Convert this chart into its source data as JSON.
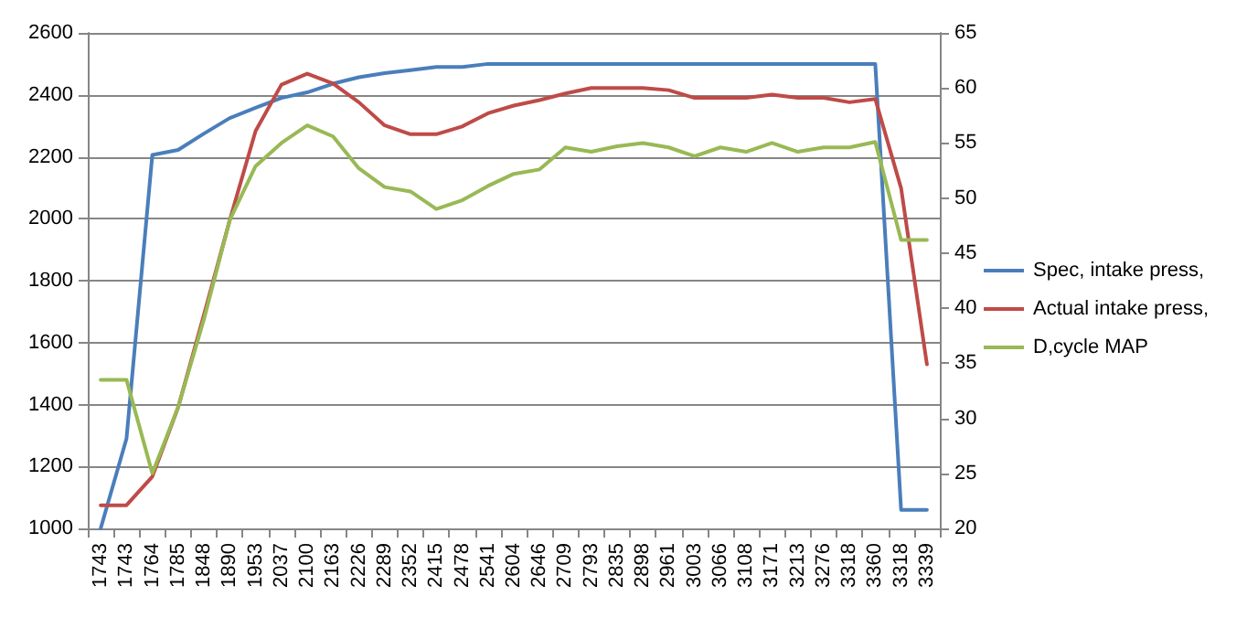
{
  "chart_data": {
    "type": "line",
    "categories": [
      "1743",
      "1743",
      "1764",
      "1785",
      "1848",
      "1890",
      "1953",
      "2037",
      "2100",
      "2163",
      "2226",
      "2289",
      "2352",
      "2415",
      "2478",
      "2541",
      "2604",
      "2646",
      "2709",
      "2793",
      "2835",
      "2898",
      "2961",
      "3003",
      "3066",
      "3108",
      "3171",
      "3213",
      "3276",
      "3318",
      "3360",
      "3318",
      "3339"
    ],
    "series": [
      {
        "name": "Spec, intake press,",
        "color": "#4a7ebb",
        "values": [
          1000,
          1290,
          2206,
          2222,
          2275,
          2325,
          2358,
          2390,
          2408,
          2436,
          2457,
          2470,
          2480,
          2490,
          2490,
          2500,
          2500,
          2500,
          2500,
          2500,
          2500,
          2500,
          2500,
          2500,
          2500,
          2500,
          2500,
          2500,
          2500,
          2500,
          2500,
          1060,
          1060
        ]
      },
      {
        "name": "Actual intake press,",
        "color": "#be4b48",
        "axis": "y2",
        "values": [
          22.1,
          22.1,
          24.7,
          31.0,
          39.4,
          48.0,
          56.1,
          60.3,
          61.3,
          60.4,
          58.7,
          56.6,
          55.8,
          55.8,
          56.5,
          57.7,
          58.4,
          58.9,
          59.5,
          60.0,
          60.0,
          60.0,
          59.8,
          59.1,
          59.1,
          59.1,
          59.4,
          59.1,
          59.1,
          58.7,
          59.0,
          50.9,
          34.9
        ]
      },
      {
        "name": "D,cycle MAP",
        "color": "#98b954",
        "axis": "y2",
        "values": [
          33.5,
          33.5,
          25.0,
          31.0,
          39.0,
          48.0,
          52.9,
          55.0,
          56.6,
          55.6,
          52.7,
          51.0,
          50.6,
          49.0,
          49.8,
          51.1,
          52.2,
          52.6,
          54.6,
          54.2,
          54.7,
          55.0,
          54.6,
          53.8,
          54.6,
          54.2,
          55.0,
          54.2,
          54.6,
          54.6,
          55.1,
          46.2,
          46.2
        ]
      }
    ],
    "ylim": [
      1000,
      2600
    ],
    "yticks": [
      1000,
      1200,
      1400,
      1600,
      1800,
      2000,
      2200,
      2400,
      2600
    ],
    "y2lim": [
      20,
      65
    ],
    "y2ticks": [
      20,
      25,
      30,
      35,
      40,
      45,
      50,
      55,
      60,
      65
    ],
    "grid": "y",
    "legend": "right",
    "marker": "none",
    "line_style": "solid"
  }
}
